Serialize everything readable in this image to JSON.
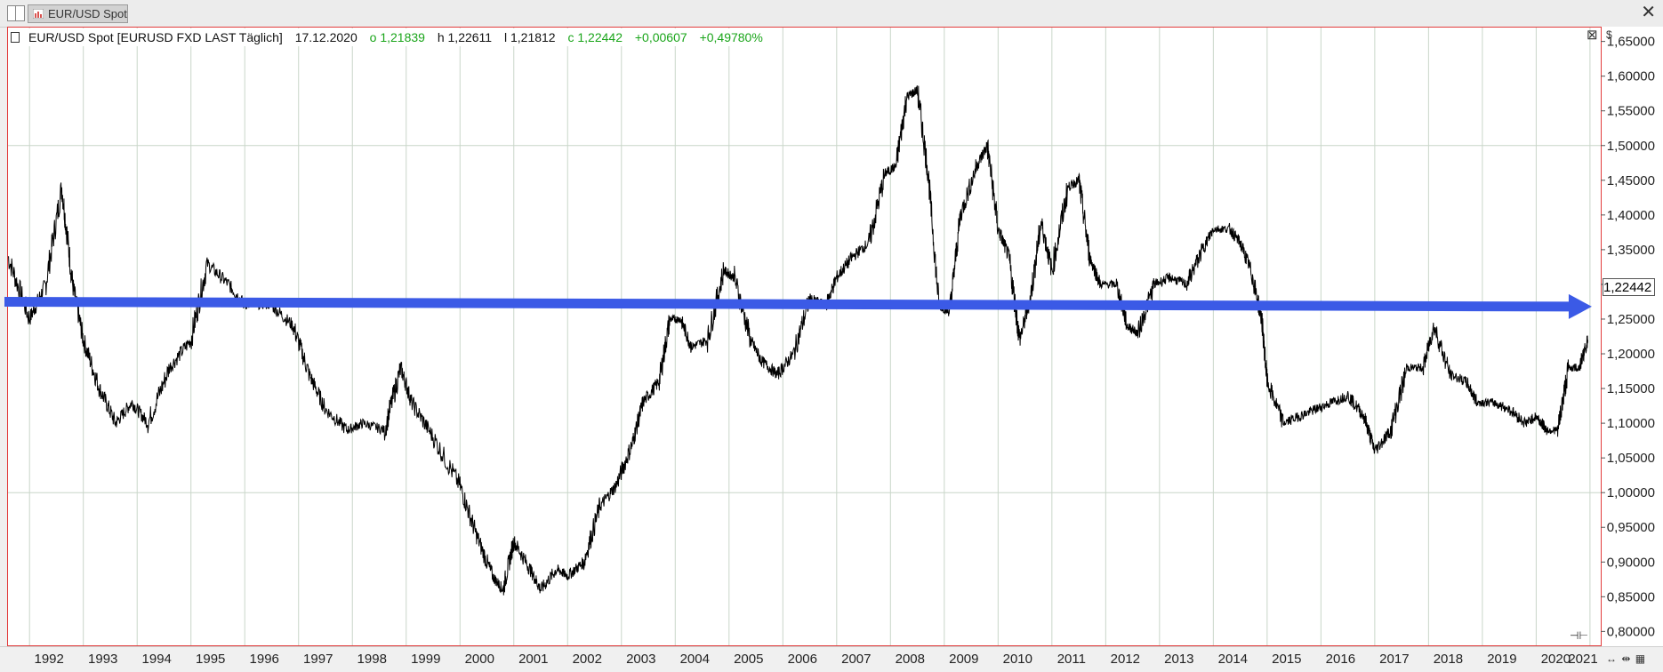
{
  "tab": {
    "label": "EUR/USD Spot"
  },
  "info": {
    "instrument": "EUR/USD Spot [EURUSD FXD LAST Täglich]",
    "date": "17.12.2020",
    "open": "o 1,21839",
    "high": "h 1,22611",
    "low": "l 1,21812",
    "close": "c 1,22442",
    "change": "+0,00607",
    "change_pct": "+0,49780%"
  },
  "axis": {
    "currency_symbol": "$",
    "last_price": "1,22442",
    "y_ticks": [
      "1,65000",
      "1,60000",
      "1,55000",
      "1,50000",
      "1,45000",
      "1,40000",
      "1,35000",
      "1,30000",
      "1,25000",
      "1,20000",
      "1,15000",
      "1,10000",
      "1,05000",
      "1,00000",
      "0,95000",
      "0,90000",
      "0,85000",
      "0,80000"
    ],
    "x_ticks": [
      "1992",
      "1993",
      "1994",
      "1995",
      "1996",
      "1997",
      "1998",
      "1999",
      "2000",
      "2001",
      "2002",
      "2003",
      "2004",
      "2005",
      "2006",
      "2007",
      "2008",
      "2009",
      "2010",
      "2011",
      "2012",
      "2013",
      "2014",
      "2015",
      "2016",
      "2017",
      "2018",
      "2019",
      "2020",
      "2021"
    ]
  },
  "colors": {
    "frame": "#e23b3b",
    "arrow": "#3b5ae6",
    "gain": "#1aa51a",
    "grid": "#c9d6c9"
  },
  "icons": [
    "layout-split-icon",
    "chart-icon",
    "close-icon",
    "info-marker-icon",
    "scroll-handle-icon",
    "zoom-in-icon",
    "zoom-out-icon",
    "chart-style-icon"
  ],
  "chart_data": {
    "type": "line",
    "title": "EUR/USD Spot [EURUSD FXD LAST Täglich]",
    "xlabel": "",
    "ylabel": "",
    "ylim": [
      0.78,
      1.67
    ],
    "xlim": [
      1991.6,
      2021.2
    ],
    "series": [
      {
        "name": "EUR/USD Spot",
        "x": [
          1991.6,
          1992.0,
          1992.3,
          1992.6,
          1992.8,
          1993.0,
          1993.3,
          1993.6,
          1993.9,
          1994.2,
          1994.6,
          1995.0,
          1995.3,
          1995.7,
          1996.0,
          1996.5,
          1996.9,
          1997.2,
          1997.5,
          1997.9,
          1998.2,
          1998.6,
          1998.9,
          1999.1,
          1999.5,
          2000.0,
          2000.3,
          2000.6,
          2000.8,
          2001.0,
          2001.3,
          2001.5,
          2001.8,
          2002.0,
          2002.3,
          2002.6,
          2002.9,
          2003.2,
          2003.4,
          2003.7,
          2003.9,
          2004.1,
          2004.3,
          2004.6,
          2004.9,
          2005.1,
          2005.4,
          2005.6,
          2005.9,
          2006.2,
          2006.5,
          2006.8,
          2007.0,
          2007.3,
          2007.6,
          2007.9,
          2008.1,
          2008.3,
          2008.5,
          2008.7,
          2008.9,
          2009.1,
          2009.3,
          2009.6,
          2009.8,
          2010.0,
          2010.2,
          2010.4,
          2010.6,
          2010.8,
          2011.0,
          2011.3,
          2011.5,
          2011.7,
          2011.9,
          2012.2,
          2012.4,
          2012.6,
          2012.9,
          2013.2,
          2013.5,
          2013.8,
          2014.0,
          2014.3,
          2014.5,
          2014.7,
          2014.9,
          2015.0,
          2015.3,
          2015.6,
          2015.9,
          2016.2,
          2016.5,
          2016.8,
          2017.0,
          2017.3,
          2017.6,
          2017.9,
          2018.1,
          2018.4,
          2018.7,
          2018.9,
          2019.2,
          2019.5,
          2019.8,
          2020.0,
          2020.2,
          2020.4,
          2020.6,
          2020.8,
          2020.96
        ],
        "y": [
          1.34,
          1.25,
          1.3,
          1.44,
          1.3,
          1.22,
          1.15,
          1.1,
          1.13,
          1.1,
          1.18,
          1.22,
          1.33,
          1.3,
          1.27,
          1.27,
          1.24,
          1.17,
          1.12,
          1.09,
          1.1,
          1.09,
          1.18,
          1.13,
          1.08,
          1.01,
          0.94,
          0.88,
          0.86,
          0.93,
          0.89,
          0.86,
          0.89,
          0.88,
          0.9,
          0.98,
          1.01,
          1.07,
          1.13,
          1.16,
          1.25,
          1.25,
          1.21,
          1.22,
          1.32,
          1.31,
          1.22,
          1.19,
          1.17,
          1.2,
          1.28,
          1.27,
          1.31,
          1.34,
          1.36,
          1.46,
          1.47,
          1.57,
          1.58,
          1.46,
          1.27,
          1.26,
          1.4,
          1.47,
          1.5,
          1.38,
          1.34,
          1.22,
          1.28,
          1.39,
          1.32,
          1.44,
          1.45,
          1.34,
          1.3,
          1.3,
          1.24,
          1.23,
          1.3,
          1.31,
          1.3,
          1.35,
          1.38,
          1.38,
          1.36,
          1.32,
          1.25,
          1.16,
          1.1,
          1.11,
          1.12,
          1.13,
          1.14,
          1.11,
          1.06,
          1.09,
          1.18,
          1.18,
          1.24,
          1.17,
          1.16,
          1.13,
          1.13,
          1.12,
          1.1,
          1.11,
          1.09,
          1.09,
          1.18,
          1.18,
          1.22
        ]
      }
    ],
    "annotations": [
      {
        "type": "arrow",
        "label": "",
        "from": [
          1991.6,
          1.275
        ],
        "to": [
          2021.1,
          1.268
        ]
      }
    ]
  }
}
